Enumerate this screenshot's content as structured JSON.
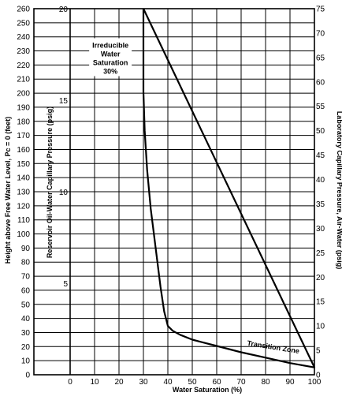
{
  "chart_data": {
    "type": "line",
    "xlabel": "Water Saturation (%)",
    "xlim": [
      -30,
      100
    ],
    "x_ticks": [
      0,
      10,
      20,
      30,
      40,
      50,
      60,
      70,
      80,
      90,
      100
    ],
    "ylabel_left": "Height above Free Water Level, Pc = 0 (feet)",
    "ylim_left": [
      0,
      260
    ],
    "ylabel_inner": "Reservoir Oil-Water Capillary Pressure (psig)",
    "y_inner_ticks": [
      5,
      10,
      15,
      20
    ],
    "ylabel_right": "Laboratory Capillary Pressure, Air-Water (psig)",
    "ylim_right": [
      0,
      75
    ],
    "grid": true,
    "series": [
      {
        "x": [
          30,
          30.5,
          31.5,
          33,
          35,
          37,
          38.5,
          40,
          42,
          45,
          50,
          60,
          70,
          80,
          90,
          100
        ],
        "y": [
          58,
          50,
          42,
          34,
          26,
          18,
          13,
          10,
          9,
          8.2,
          7.2,
          5.9,
          4.6,
          3.5,
          2.4,
          1.5
        ]
      }
    ],
    "annotations": [
      {
        "text": "Irreducible\nWater\nSaturation\n30%",
        "x": 16.5,
        "y": 67
      },
      {
        "text": "Transition Zone",
        "x": 83,
        "y": 5.2
      }
    ]
  }
}
